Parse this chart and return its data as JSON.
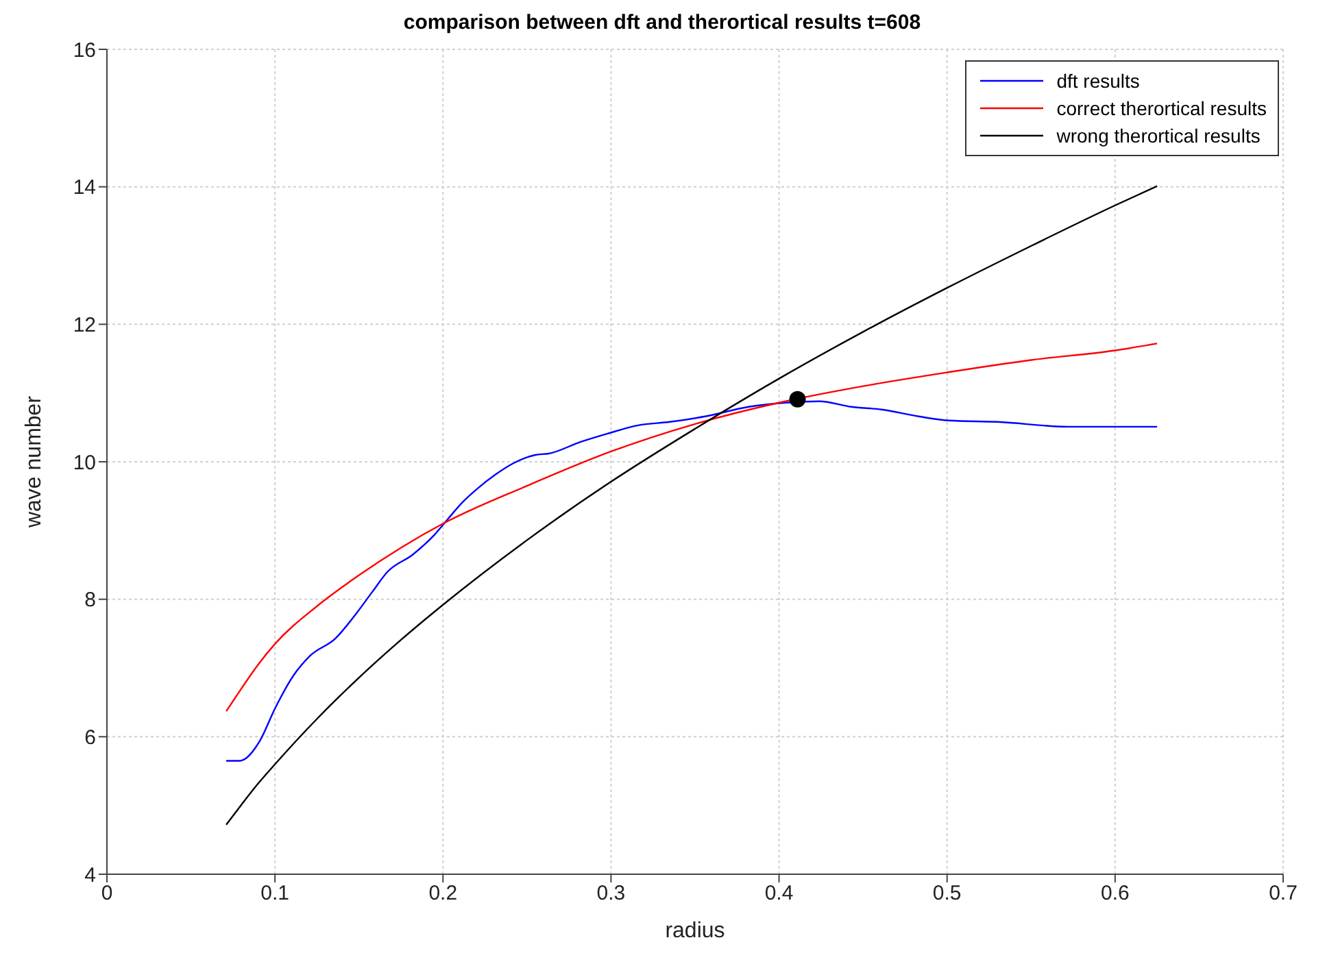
{
  "chart_data": {
    "type": "line",
    "title": "comparison between dft and therortical results t=608",
    "xlabel": "radius",
    "ylabel": "wave number",
    "xlim": [
      0,
      0.7
    ],
    "xticks": [
      0,
      0.1,
      0.2,
      0.3,
      0.4,
      0.5,
      0.6,
      0.7
    ],
    "ylim": [
      4,
      16
    ],
    "yticks": [
      4,
      6,
      8,
      10,
      12,
      14,
      16
    ],
    "grid": true,
    "legend": "top right",
    "marker": "none",
    "line_style": "solid",
    "series": [
      {
        "name": "dft results",
        "color": "#0000ff",
        "x": [
          0.071,
          0.079,
          0.091,
          0.1,
          0.111,
          0.121,
          0.136,
          0.148,
          0.158,
          0.167,
          0.182,
          0.195,
          0.203,
          0.212,
          0.221,
          0.231,
          0.242,
          0.255,
          0.263,
          0.282,
          0.298,
          0.316,
          0.335,
          0.356,
          0.382,
          0.404,
          0.424,
          0.443,
          0.461,
          0.483,
          0.501,
          0.53,
          0.572,
          0.625
        ],
        "values": [
          5.65,
          5.65,
          5.94,
          6.41,
          6.89,
          7.18,
          7.43,
          7.78,
          8.11,
          8.4,
          8.65,
          8.94,
          9.17,
          9.42,
          9.62,
          9.81,
          9.98,
          10.1,
          10.12,
          10.29,
          10.41,
          10.53,
          10.58,
          10.66,
          10.8,
          10.86,
          10.88,
          10.8,
          10.76,
          10.66,
          10.6,
          10.58,
          10.51,
          10.51
        ]
      },
      {
        "name": "correct therortical results",
        "color": "#ff0000",
        "x": [
          0.071,
          0.08,
          0.09,
          0.1,
          0.125,
          0.15,
          0.175,
          0.2,
          0.25,
          0.3,
          0.35,
          0.4,
          0.45,
          0.5,
          0.55,
          0.6,
          0.625
        ],
        "values": [
          6.37,
          6.7,
          7.05,
          7.35,
          7.9,
          8.35,
          8.75,
          9.1,
          9.65,
          10.15,
          10.55,
          10.86,
          11.1,
          11.3,
          11.48,
          11.62,
          11.72
        ]
      },
      {
        "name": "wrong therortical results",
        "color": "#000000",
        "x": [
          0.071,
          0.08,
          0.09,
          0.1,
          0.125,
          0.15,
          0.175,
          0.2,
          0.25,
          0.3,
          0.35,
          0.4,
          0.45,
          0.5,
          0.55,
          0.6,
          0.625
        ],
        "values": [
          4.72,
          5.01,
          5.32,
          5.6,
          6.26,
          6.86,
          7.41,
          7.92,
          8.86,
          9.71,
          10.48,
          11.21,
          11.89,
          12.53,
          13.14,
          13.73,
          14.01
        ]
      },
      {
        "type": "scatter",
        "color": "#000000",
        "marker": "circle",
        "x": [
          0.411
        ],
        "values": [
          10.91
        ]
      }
    ]
  }
}
